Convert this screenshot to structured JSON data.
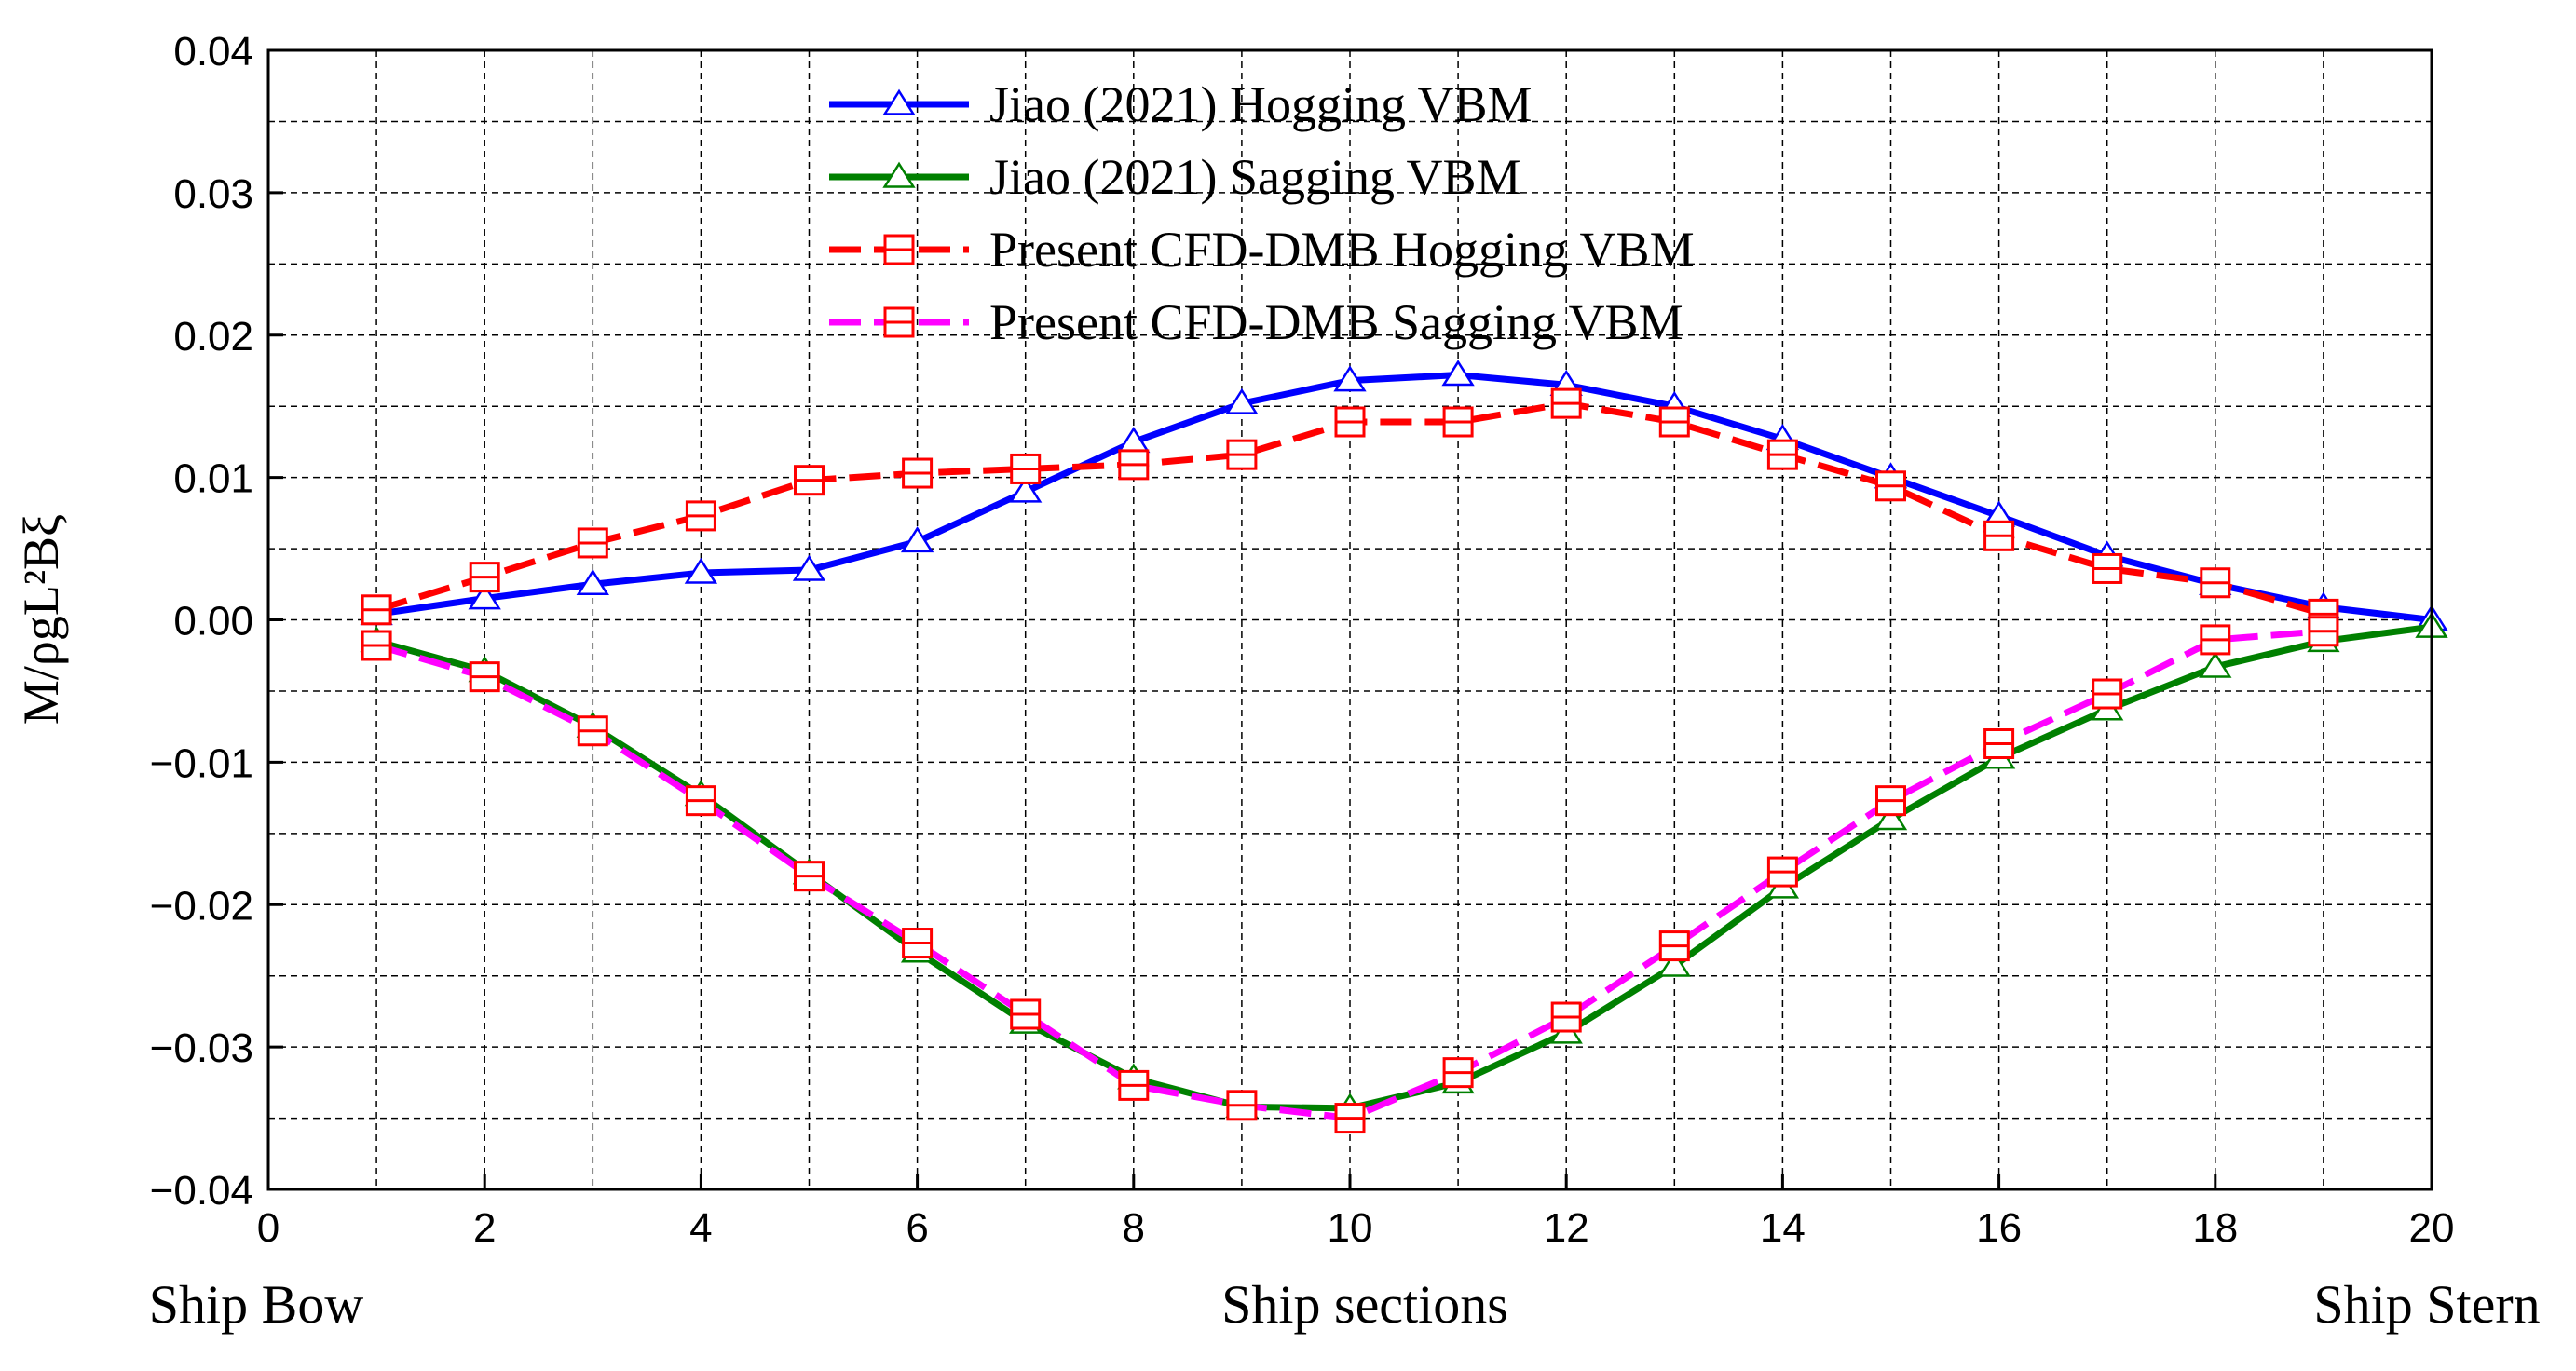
{
  "chart_data": {
    "type": "line",
    "title": "",
    "xlabel": "Ship sections",
    "xlabel_left": "Ship Bow",
    "xlabel_right": "Ship Stern",
    "ylabel": "M/ρgL²Bξ",
    "xlim": [
      0,
      20
    ],
    "ylim": [
      -0.04,
      0.04
    ],
    "xticks": [
      0,
      2,
      4,
      6,
      8,
      10,
      12,
      14,
      16,
      18,
      20
    ],
    "xtick_labels": [
      "0",
      "2",
      "4",
      "6",
      "8",
      "10",
      "12",
      "14",
      "16",
      "18",
      "20"
    ],
    "yticks": [
      0.04,
      0.03,
      0.02,
      0.01,
      0.0,
      -0.01,
      -0.02,
      -0.03,
      -0.04
    ],
    "ytick_labels": [
      "0.04",
      "0.03",
      "0.02",
      "0.01",
      "0.00",
      "−0.01",
      "−0.02",
      "−0.03",
      "−0.04"
    ],
    "grid": true,
    "legend_position": "top-center",
    "series": [
      {
        "name": "Jiao (2021) Hogging VBM",
        "color": "#0000ff",
        "marker": "triangle",
        "dashed": false,
        "x": [
          1,
          2,
          3,
          4,
          5,
          6,
          7,
          8,
          9,
          10,
          11,
          12,
          13,
          14,
          15,
          16,
          17,
          18,
          19,
          20
        ],
        "y": [
          0.0004,
          0.0015,
          0.0025,
          0.0033,
          0.0035,
          0.0055,
          0.009,
          0.0125,
          0.0152,
          0.0168,
          0.0172,
          0.0165,
          0.015,
          0.0127,
          0.01,
          0.0073,
          0.0045,
          0.0025,
          0.0009,
          0.0
        ]
      },
      {
        "name": "Jiao (2021) Sagging VBM",
        "color": "#008000",
        "marker": "triangle",
        "dashed": false,
        "x": [
          1,
          2,
          3,
          4,
          5,
          6,
          7,
          8,
          9,
          10,
          11,
          12,
          13,
          14,
          15,
          16,
          17,
          18,
          19,
          20
        ],
        "y": [
          -0.0015,
          -0.0036,
          -0.0075,
          -0.0123,
          -0.0178,
          -0.0233,
          -0.0283,
          -0.0322,
          -0.0342,
          -0.0343,
          -0.0325,
          -0.029,
          -0.0243,
          -0.0188,
          -0.014,
          -0.0097,
          -0.0063,
          -0.0033,
          -0.0015,
          -0.0005
        ]
      },
      {
        "name": "Present CFD-DMB Hogging VBM",
        "color": "#ff0000",
        "marker": "square",
        "dashed": true,
        "x": [
          1,
          2,
          3,
          4,
          5,
          6,
          7,
          8,
          9,
          10,
          11,
          12,
          13,
          14,
          15,
          16,
          17,
          18,
          19
        ],
        "y": [
          0.0007,
          0.003,
          0.0054,
          0.0073,
          0.0098,
          0.0103,
          0.0106,
          0.0109,
          0.0116,
          0.0139,
          0.0139,
          0.0152,
          0.0139,
          0.0116,
          0.0094,
          0.0059,
          0.0036,
          0.0026,
          0.0004
        ]
      },
      {
        "name": "Present CFD-DMB Sagging VBM",
        "color": "#ff00ff",
        "marker": "square",
        "dashed": true,
        "x": [
          1,
          2,
          3,
          4,
          5,
          6,
          7,
          8,
          9,
          10,
          11,
          12,
          13,
          14,
          15,
          16,
          17,
          18,
          19
        ],
        "y": [
          -0.0018,
          -0.004,
          -0.0078,
          -0.0127,
          -0.018,
          -0.0227,
          -0.0277,
          -0.0327,
          -0.0341,
          -0.035,
          -0.0318,
          -0.0279,
          -0.0229,
          -0.0177,
          -0.0127,
          -0.0087,
          -0.0052,
          -0.0014,
          -0.0008
        ]
      }
    ]
  }
}
